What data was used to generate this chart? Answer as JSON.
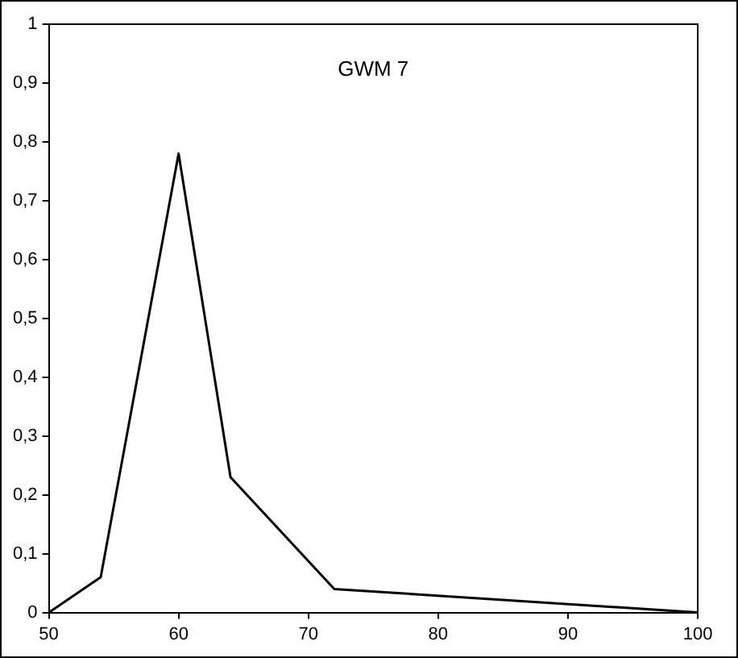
{
  "chart_data": {
    "type": "line",
    "title": "GWM 7",
    "x": [
      50,
      54,
      60,
      64,
      72,
      100
    ],
    "series": [
      {
        "color": "#000000",
        "values": [
          0,
          0.06,
          0.78,
          0.23,
          0.04,
          0
        ]
      }
    ],
    "xlim": [
      50,
      100
    ],
    "xticks": [
      50,
      60,
      70,
      80,
      90,
      100
    ],
    "ylim": [
      0,
      1
    ],
    "yticks": [
      0,
      {
        "value": 0.1,
        "label": "0,1"
      },
      {
        "value": 0.2,
        "label": "0,2"
      },
      {
        "value": 0.3,
        "label": "0,3"
      },
      {
        "value": 0.4,
        "label": "0,4"
      },
      {
        "value": 0.5,
        "label": "0,5"
      },
      {
        "value": 0.6,
        "label": "0,6"
      },
      {
        "value": 0.7,
        "label": "0,7"
      },
      {
        "value": 0.8,
        "label": "0,8"
      },
      {
        "value": 0.9,
        "label": "0,9"
      },
      1
    ],
    "grid": false,
    "legend": false,
    "marker": "none",
    "line_style": "solid"
  }
}
